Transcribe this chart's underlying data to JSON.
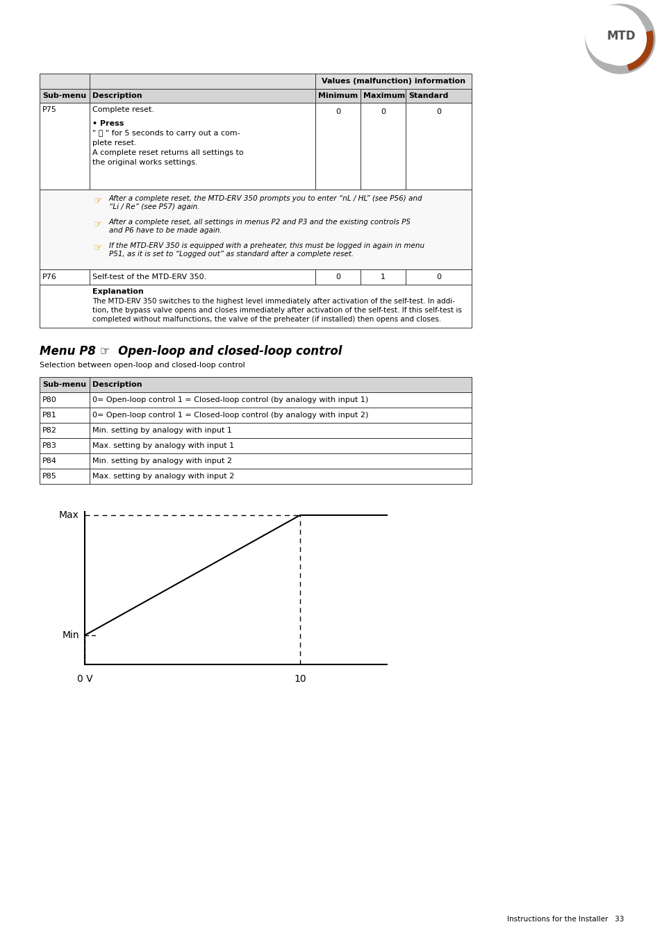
{
  "page_bg": "#ffffff",
  "title_section1": "Values (malfunction) information",
  "table1_headers": [
    "Sub-menu",
    "Description",
    "Minimum",
    "Maximum",
    "Standard"
  ],
  "note1_lines": [
    "After a complete reset, the  MTD-ERV 350 prompts you to enter “nL / HL” (see P56) and “Li / Re” (see P57) again.",
    "After a complete reset, all settings in menus P2 and P3 and the existing controls P5 and P6 have to be made again.",
    "If the  MTD-ERV 350 is equipped with a preheater, this must be logged in again in menu P51, as it is set to “Logged out” as standard after a complete reset."
  ],
  "explanation_title": "Explanation",
  "explanation_text": "The MTD-ERV 350 switches to the highest level immediately after activation of the self-test. In addi-\ntion, the bypass valve opens and closes immediately after activation of the self-test. If this self-test is\ncompleted without malfunctions, the valve of the preheater (if installed) then opens and closes.",
  "menu_title_italic": "Menu P8 ☞  Open-loop and closed-loop control",
  "menu_subtitle": "Selection between open-loop and closed-loop control",
  "table2_headers": [
    "Sub-menu",
    "Description"
  ],
  "table2_rows": [
    [
      "P80",
      "0= Open-loop control 1 = Closed-loop control (by analogy with input 1)"
    ],
    [
      "P81",
      "0= Open-loop control 1 = Closed-loop control (by analogy with input 2)"
    ],
    [
      "P82",
      "Min. setting by analogy with input 1"
    ],
    [
      "P83",
      "Max. setting by analogy with input 1"
    ],
    [
      "P84",
      "Min. setting by analogy with input 2"
    ],
    [
      "P85",
      "Max. setting by analogy with input 2"
    ]
  ],
  "graph_ylabel_max": "Max",
  "graph_ylabel_min": "Min",
  "graph_xlabel_0": "0 V",
  "graph_xlabel_10": "10",
  "footer_text": "Instructions for the Installer   33"
}
